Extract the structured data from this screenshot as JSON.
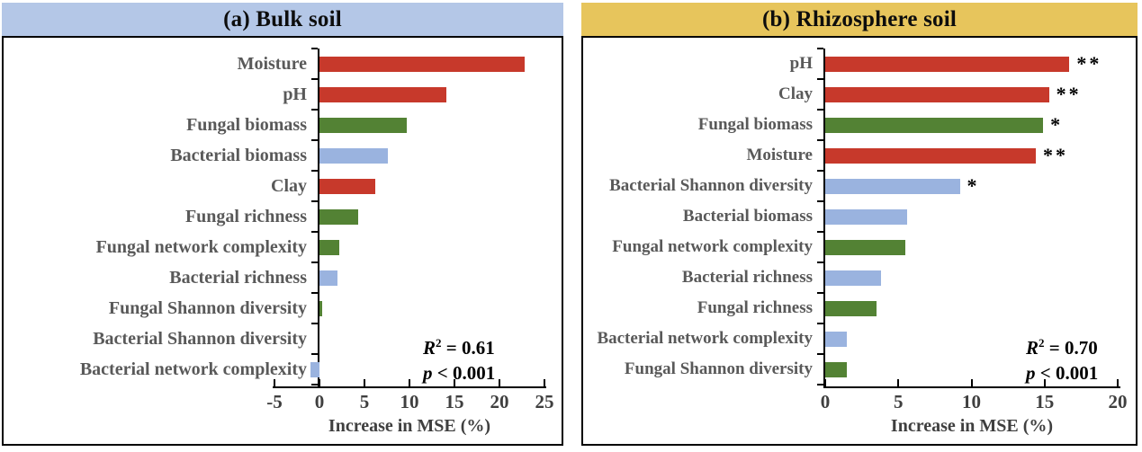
{
  "colors": {
    "red": "#C7392B",
    "green": "#538234",
    "blue": "#9AB3DF",
    "header_bulk": "#B4C7E7",
    "header_rhizosphere": "#E7C55C",
    "category_label": "#595959",
    "axis_label": "#3F3F3F"
  },
  "chart_data": [
    {
      "type": "bar",
      "orientation": "horizontal",
      "title": "(a) Bulk soil",
      "header_color": "#B4C7E7",
      "xlabel": "Increase in MSE (%)",
      "xlim": [
        -5,
        25
      ],
      "xticks": [
        -5,
        0,
        5,
        10,
        15,
        20,
        25
      ],
      "grid": false,
      "categories": [
        "Moisture",
        "pH",
        "Fungal biomass",
        "Bacterial biomass",
        "Clay",
        "Fungal richness",
        "Fungal network complexity",
        "Bacterial richness",
        "Fungal Shannon diversity",
        "Bacterial Shannon diversity",
        "Bacterial network complexity"
      ],
      "values": [
        22.8,
        14.1,
        9.7,
        7.6,
        6.2,
        4.3,
        2.2,
        2.0,
        0.3,
        0,
        -1.0
      ],
      "bar_colors": [
        "red",
        "red",
        "green",
        "blue",
        "red",
        "green",
        "green",
        "blue",
        "green",
        "blue",
        "blue"
      ],
      "significance": [
        "",
        "",
        "",
        "",
        "",
        "",
        "",
        "",
        "",
        "",
        ""
      ],
      "stats": {
        "r2_var": "R",
        "r2_sup": "2",
        "r2_rest": " = 0.61",
        "p_var": "p",
        "p_rest": " < 0.001"
      }
    },
    {
      "type": "bar",
      "orientation": "horizontal",
      "title": "(b) Rhizosphere soil",
      "header_color": "#E7C55C",
      "xlabel": "Increase in MSE (%)",
      "xlim": [
        0,
        20
      ],
      "xticks": [
        0,
        5,
        10,
        15,
        20
      ],
      "grid": false,
      "categories": [
        "pH",
        "Clay",
        "Fungal biomass",
        "Moisture",
        "Bacterial Shannon diversity",
        "Bacterial biomass",
        "Fungal network complexity",
        "Bacterial richness",
        "Fungal richness",
        "Bacterial network complexity",
        "Fungal Shannon diversity"
      ],
      "values": [
        16.7,
        15.3,
        14.9,
        14.4,
        9.2,
        5.6,
        5.5,
        3.8,
        3.5,
        1.5,
        1.5
      ],
      "bar_colors": [
        "red",
        "red",
        "green",
        "red",
        "blue",
        "blue",
        "green",
        "blue",
        "green",
        "blue",
        "green"
      ],
      "significance": [
        "**",
        "**",
        "*",
        "**",
        "*",
        "",
        "",
        "",
        "",
        "",
        ""
      ],
      "stats": {
        "r2_var": "R",
        "r2_sup": "2",
        "r2_rest": " = 0.70",
        "p_var": "p",
        "p_rest": " < 0.001"
      }
    }
  ]
}
